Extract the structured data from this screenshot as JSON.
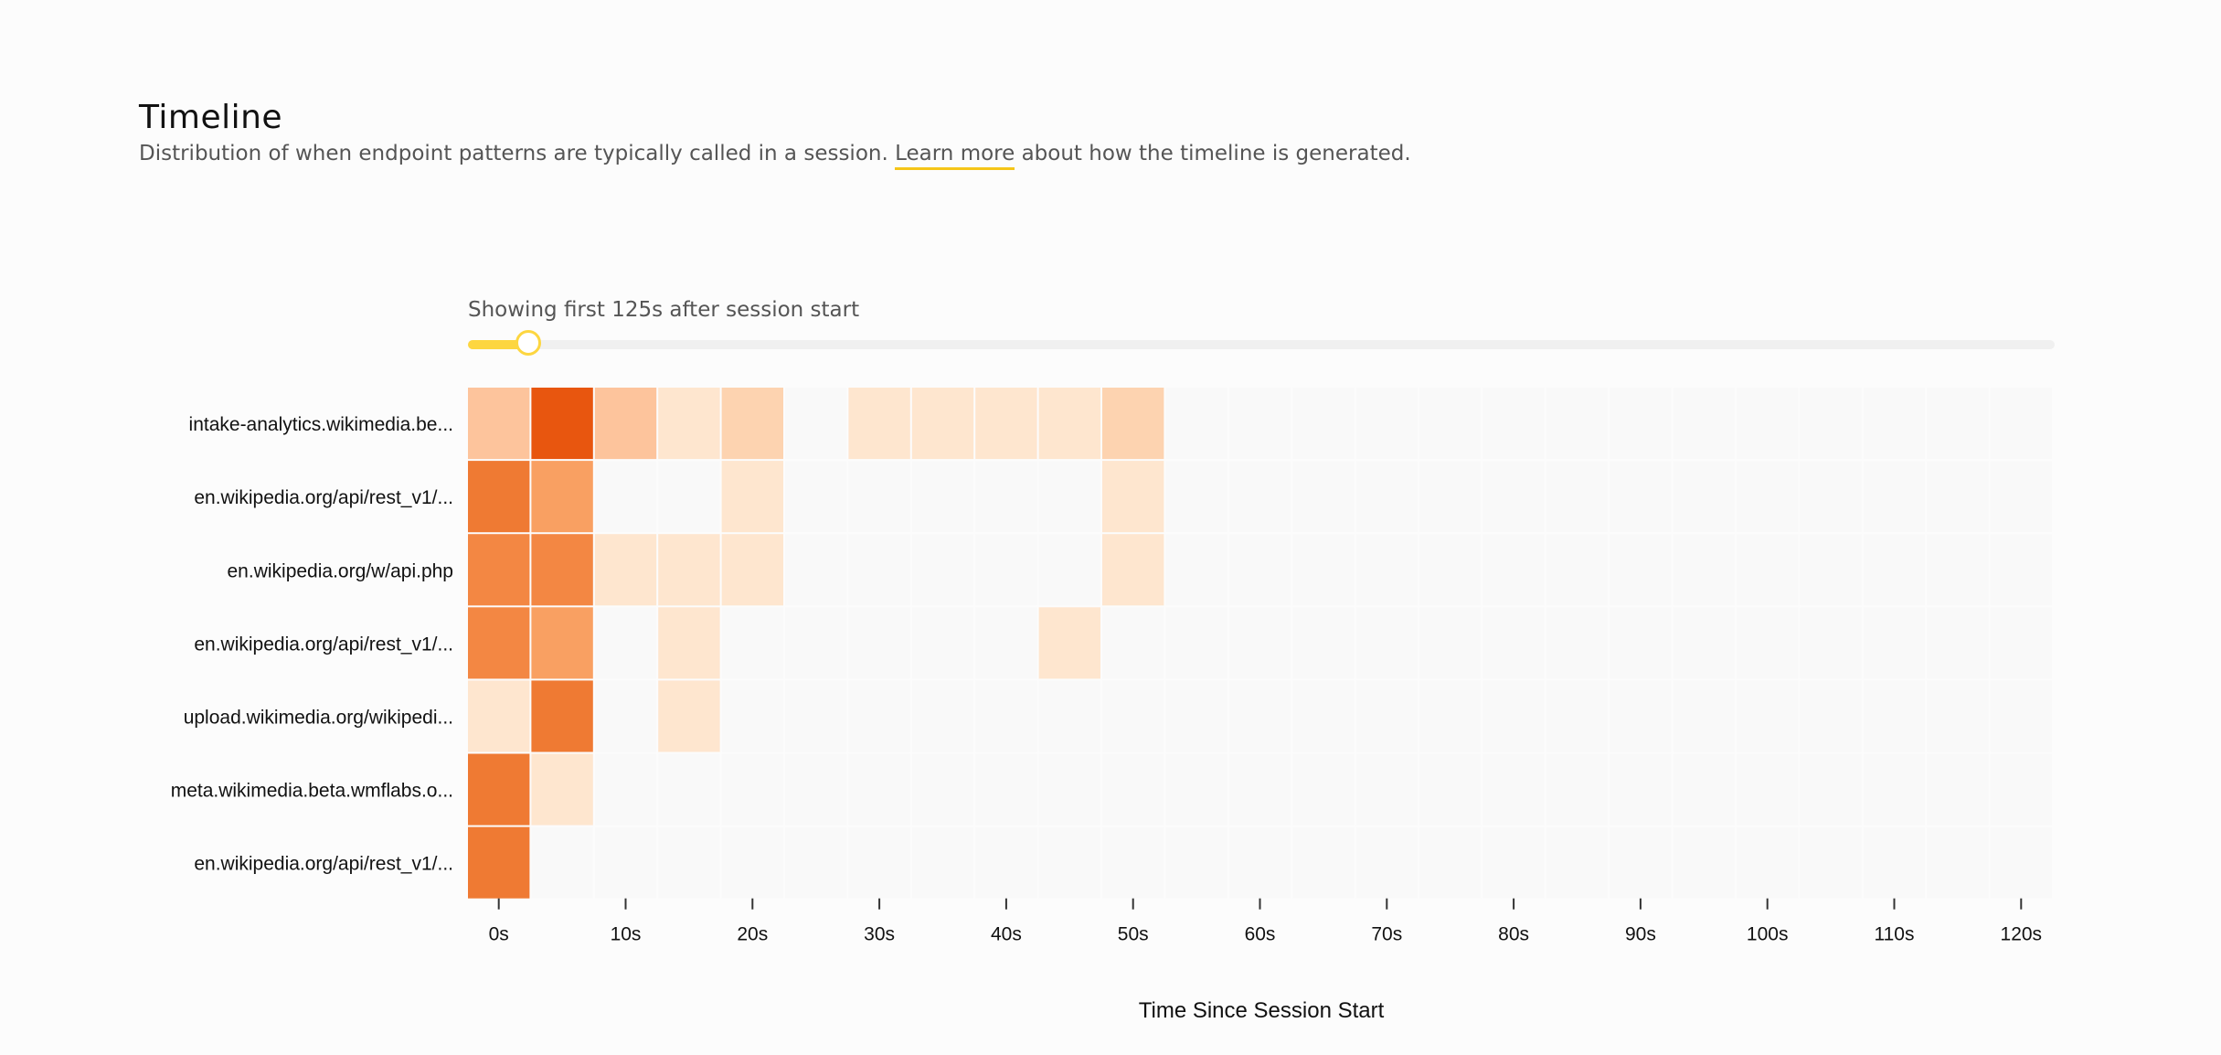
{
  "page": {
    "title": "Timeline",
    "description_before": "Distribution of when endpoint patterns are typically called in a session. ",
    "learn_more": "Learn more",
    "description_after": " about how the timeline is generated."
  },
  "slider": {
    "caption": "Showing first 125s after session start",
    "value_fraction": 0.03
  },
  "colors": {
    "scale": [
      "#f9f9f9",
      "#fee6cf",
      "#fdd3b0",
      "#fdc49c",
      "#f9a062",
      "#f38743",
      "#ef7a33",
      "#e8560f"
    ]
  },
  "chart_data": {
    "type": "heatmap",
    "title": "",
    "xlabel": "Time Since Session Start",
    "ylabel": "",
    "bin_seconds": 5,
    "x_bins": [
      0,
      5,
      10,
      15,
      20,
      25,
      30,
      35,
      40,
      45,
      50,
      55,
      60,
      65,
      70,
      75,
      80,
      85,
      90,
      95,
      100,
      105,
      110,
      115,
      120
    ],
    "x_ticks": [
      "0s",
      "10s",
      "20s",
      "30s",
      "40s",
      "50s",
      "60s",
      "70s",
      "80s",
      "90s",
      "100s",
      "110s",
      "120s"
    ],
    "y_labels": [
      "intake-analytics.wikimedia.be...",
      "en.wikipedia.org/api/rest_v1/...",
      "en.wikipedia.org/w/api.php",
      "en.wikipedia.org/api/rest_v1/...",
      "upload.wikimedia.org/wikipedi...",
      "meta.wikimedia.beta.wmflabs.o...",
      "en.wikipedia.org/api/rest_v1/..."
    ],
    "values": [
      [
        3,
        7,
        3,
        1,
        2,
        0,
        1,
        1,
        1,
        1,
        2,
        0,
        0,
        0,
        0,
        0,
        0,
        0,
        0,
        0,
        0,
        0,
        0,
        0,
        0
      ],
      [
        6,
        4,
        0,
        0,
        1,
        0,
        0,
        0,
        0,
        0,
        1,
        0,
        0,
        0,
        0,
        0,
        0,
        0,
        0,
        0,
        0,
        0,
        0,
        0,
        0
      ],
      [
        5,
        5,
        1,
        1,
        1,
        0,
        0,
        0,
        0,
        0,
        1,
        0,
        0,
        0,
        0,
        0,
        0,
        0,
        0,
        0,
        0,
        0,
        0,
        0,
        0
      ],
      [
        5,
        4,
        0,
        1,
        0,
        0,
        0,
        0,
        0,
        1,
        0,
        0,
        0,
        0,
        0,
        0,
        0,
        0,
        0,
        0,
        0,
        0,
        0,
        0,
        0
      ],
      [
        1,
        6,
        0,
        1,
        0,
        0,
        0,
        0,
        0,
        0,
        0,
        0,
        0,
        0,
        0,
        0,
        0,
        0,
        0,
        0,
        0,
        0,
        0,
        0,
        0
      ],
      [
        6,
        1,
        0,
        0,
        0,
        0,
        0,
        0,
        0,
        0,
        0,
        0,
        0,
        0,
        0,
        0,
        0,
        0,
        0,
        0,
        0,
        0,
        0,
        0,
        0
      ],
      [
        6,
        0,
        0,
        0,
        0,
        0,
        0,
        0,
        0,
        0,
        0,
        0,
        0,
        0,
        0,
        0,
        0,
        0,
        0,
        0,
        0,
        0,
        0,
        0,
        0
      ]
    ],
    "legend": "none",
    "grid": false
  }
}
